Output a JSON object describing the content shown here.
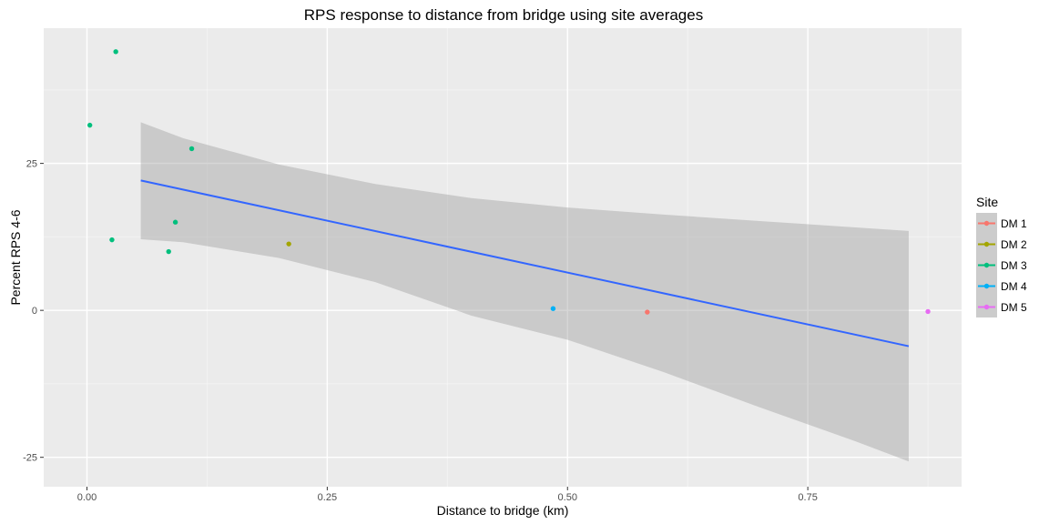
{
  "chart_data": {
    "type": "scatter",
    "title": "RPS response to distance from bridge using site averages",
    "xlabel": "Distance to bridge (km)",
    "ylabel": "Percent RPS 4-6",
    "xlim": [
      -0.045,
      0.91
    ],
    "ylim": [
      -30,
      48
    ],
    "xticks": [
      0.0,
      0.25,
      0.5,
      0.75
    ],
    "xtick_labels": [
      "0.00",
      "0.25",
      "0.50",
      "0.75"
    ],
    "yticks": [
      -25,
      0,
      25
    ],
    "ytick_labels": [
      "-25",
      "0",
      "25"
    ],
    "grid": true,
    "legend": {
      "title": "Site",
      "placement": "right"
    },
    "series": [
      {
        "name": "DM 1",
        "color": "#F8766D",
        "points": [
          [
            0.583,
            -0.3
          ]
        ]
      },
      {
        "name": "DM 2",
        "color": "#A3A500",
        "points": [
          [
            0.21,
            11.3
          ]
        ]
      },
      {
        "name": "DM 3",
        "color": "#00BF7D",
        "points": [
          [
            0.003,
            31.5
          ],
          [
            0.03,
            44.0
          ],
          [
            0.026,
            12.0
          ],
          [
            0.085,
            10.0
          ],
          [
            0.092,
            15.0
          ],
          [
            0.109,
            27.5
          ]
        ]
      },
      {
        "name": "DM 4",
        "color": "#00B0F6",
        "points": [
          [
            0.485,
            0.3
          ]
        ]
      },
      {
        "name": "DM 5",
        "color": "#E76BF3",
        "points": [
          [
            0.875,
            -0.2
          ]
        ]
      }
    ],
    "fit_line": {
      "color": "#3366FF",
      "points": [
        [
          0.056,
          22.1
        ],
        [
          0.855,
          -6.1
        ]
      ]
    },
    "confidence_band": {
      "color": "#999999",
      "upper": [
        [
          0.056,
          32.0
        ],
        [
          0.1,
          29.3
        ],
        [
          0.2,
          24.8
        ],
        [
          0.3,
          21.5
        ],
        [
          0.4,
          19.1
        ],
        [
          0.5,
          17.5
        ],
        [
          0.6,
          16.3
        ],
        [
          0.7,
          15.2
        ],
        [
          0.8,
          14.1
        ],
        [
          0.855,
          13.5
        ]
      ],
      "lower": [
        [
          0.056,
          12.1
        ],
        [
          0.1,
          11.6
        ],
        [
          0.2,
          8.9
        ],
        [
          0.3,
          4.8
        ],
        [
          0.4,
          -0.9
        ],
        [
          0.5,
          -5.0
        ],
        [
          0.6,
          -10.5
        ],
        [
          0.7,
          -16.5
        ],
        [
          0.8,
          -22.3
        ],
        [
          0.855,
          -25.7
        ]
      ]
    }
  }
}
